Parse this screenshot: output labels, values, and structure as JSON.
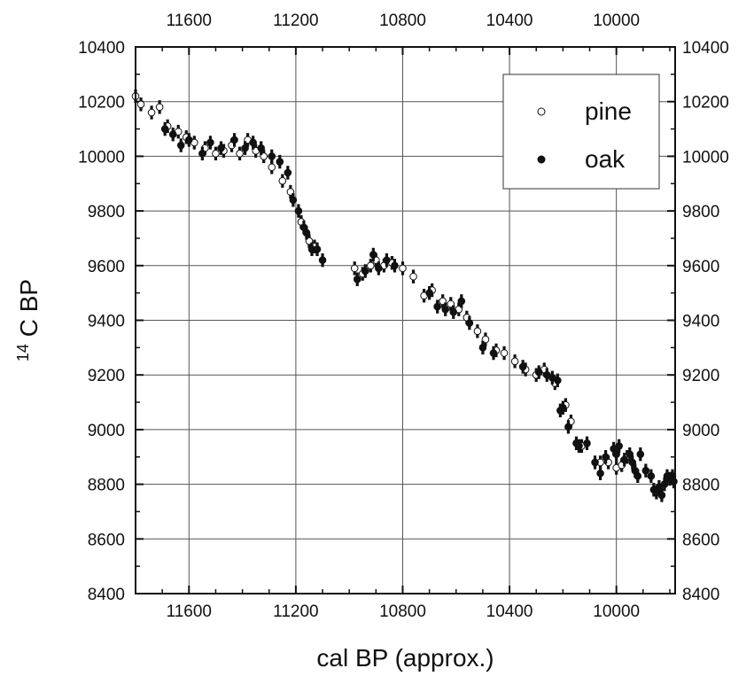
{
  "chart_data": {
    "type": "scatter",
    "xlabel": "cal BP (approx.)",
    "ylabel_sup": "14",
    "ylabel_main": "C BP",
    "xlim": [
      11800,
      9780
    ],
    "ylim": [
      8400,
      10400
    ],
    "x_reversed": true,
    "x_ticks": [
      11600,
      11200,
      10800,
      10400,
      10000
    ],
    "y_ticks": [
      8400,
      8600,
      8800,
      9000,
      9200,
      9400,
      9600,
      9800,
      10000,
      10200,
      10400
    ],
    "x_tick_labels": [
      "11600",
      "11200",
      "10800",
      "10400",
      "10000"
    ],
    "y_tick_labels": [
      "8400",
      "8600",
      "8800",
      "9000",
      "9200",
      "9400",
      "9600",
      "9800",
      "10000",
      "10200",
      "10400"
    ],
    "grid": true,
    "legend_position": "top-right",
    "error_bar": 25,
    "series": [
      {
        "name": "pine",
        "marker": "open-circle",
        "points": [
          [
            11800,
            10220
          ],
          [
            11780,
            10190
          ],
          [
            11740,
            10160
          ],
          [
            11710,
            10180
          ],
          [
            11680,
            10110
          ],
          [
            11640,
            10090
          ],
          [
            11610,
            10070
          ],
          [
            11580,
            10050
          ],
          [
            11540,
            10030
          ],
          [
            11500,
            10010
          ],
          [
            11470,
            10020
          ],
          [
            11440,
            10040
          ],
          [
            11410,
            10010
          ],
          [
            11380,
            10060
          ],
          [
            11350,
            10020
          ],
          [
            11320,
            10000
          ],
          [
            11290,
            9960
          ],
          [
            11250,
            9910
          ],
          [
            11220,
            9870
          ],
          [
            11180,
            9760
          ],
          [
            11150,
            9690
          ],
          [
            11130,
            9670
          ],
          [
            10980,
            9590
          ],
          [
            10950,
            9570
          ],
          [
            10920,
            9600
          ],
          [
            10900,
            9620
          ],
          [
            10870,
            9600
          ],
          [
            10840,
            9610
          ],
          [
            10800,
            9590
          ],
          [
            10760,
            9560
          ],
          [
            10720,
            9490
          ],
          [
            10690,
            9510
          ],
          [
            10650,
            9470
          ],
          [
            10620,
            9460
          ],
          [
            10590,
            9440
          ],
          [
            10560,
            9410
          ],
          [
            10520,
            9360
          ],
          [
            10490,
            9330
          ],
          [
            10450,
            9290
          ],
          [
            10420,
            9280
          ],
          [
            10380,
            9250
          ],
          [
            10340,
            9220
          ],
          [
            10300,
            9200
          ],
          [
            10270,
            9220
          ],
          [
            10230,
            9170
          ],
          [
            10190,
            9090
          ],
          [
            10170,
            9030
          ],
          [
            10130,
            8940
          ],
          [
            10060,
            8880
          ],
          [
            10030,
            8880
          ],
          [
            10000,
            8860
          ],
          [
            9980,
            8870
          ],
          [
            9960,
            8900
          ]
        ]
      },
      {
        "name": "oak",
        "marker": "filled-circle",
        "points": [
          [
            11690,
            10100
          ],
          [
            11660,
            10080
          ],
          [
            11630,
            10040
          ],
          [
            11600,
            10060
          ],
          [
            11550,
            10010
          ],
          [
            11520,
            10050
          ],
          [
            11480,
            10030
          ],
          [
            11430,
            10060
          ],
          [
            11390,
            10030
          ],
          [
            11360,
            10050
          ],
          [
            11330,
            10030
          ],
          [
            11290,
            10000
          ],
          [
            11260,
            9980
          ],
          [
            11230,
            9940
          ],
          [
            11210,
            9840
          ],
          [
            11190,
            9800
          ],
          [
            11170,
            9740
          ],
          [
            11160,
            9720
          ],
          [
            11140,
            9660
          ],
          [
            11120,
            9660
          ],
          [
            11100,
            9620
          ],
          [
            10970,
            9550
          ],
          [
            10940,
            9580
          ],
          [
            10910,
            9640
          ],
          [
            10890,
            9590
          ],
          [
            10860,
            9620
          ],
          [
            10830,
            9600
          ],
          [
            10700,
            9500
          ],
          [
            10670,
            9450
          ],
          [
            10640,
            9440
          ],
          [
            10610,
            9430
          ],
          [
            10580,
            9470
          ],
          [
            10550,
            9390
          ],
          [
            10500,
            9300
          ],
          [
            10460,
            9280
          ],
          [
            10350,
            9230
          ],
          [
            10290,
            9210
          ],
          [
            10260,
            9200
          ],
          [
            10240,
            9190
          ],
          [
            10220,
            9180
          ],
          [
            10210,
            9070
          ],
          [
            10200,
            9080
          ],
          [
            10180,
            9010
          ],
          [
            10150,
            8950
          ],
          [
            10140,
            8940
          ],
          [
            10110,
            8950
          ],
          [
            10080,
            8880
          ],
          [
            10060,
            8840
          ],
          [
            10040,
            8900
          ],
          [
            10010,
            8930
          ],
          [
            10000,
            8910
          ],
          [
            9990,
            8940
          ],
          [
            9970,
            8890
          ],
          [
            9950,
            8910
          ],
          [
            9940,
            8880
          ],
          [
            9930,
            8850
          ],
          [
            9920,
            8830
          ],
          [
            9910,
            8910
          ],
          [
            9890,
            8850
          ],
          [
            9870,
            8830
          ],
          [
            9860,
            8780
          ],
          [
            9850,
            8770
          ],
          [
            9840,
            8790
          ],
          [
            9830,
            8760
          ],
          [
            9820,
            8800
          ],
          [
            9810,
            8830
          ],
          [
            9800,
            8820
          ],
          [
            9790,
            8830
          ],
          [
            9785,
            8810
          ]
        ]
      }
    ]
  }
}
